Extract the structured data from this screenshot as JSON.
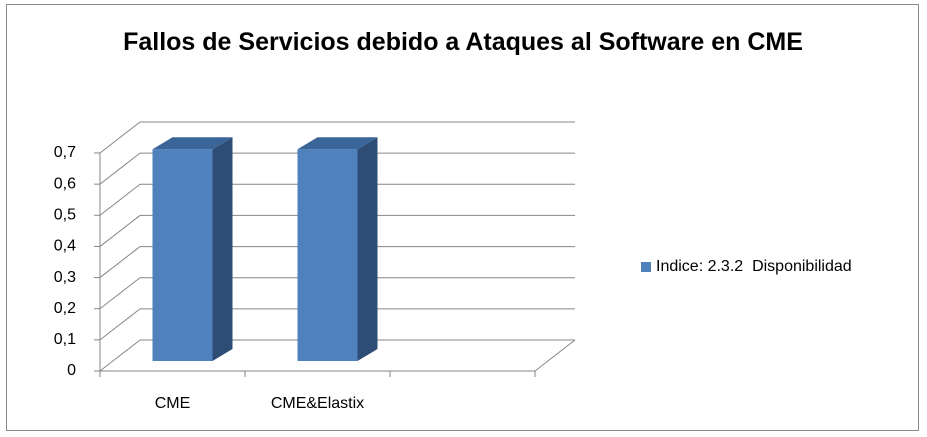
{
  "chart_data": {
    "type": "bar3d",
    "title": "Fallos de Servicios debido a Ataques al Software en CME",
    "categories": [
      "CME",
      "CME&Elastix",
      null
    ],
    "series": [
      {
        "name": "Indice: 2.3.2  Disponibilidad",
        "color": "#4f81bd",
        "values": [
          0.68,
          0.68,
          null
        ]
      }
    ],
    "ylim": [
      0,
      0.7
    ],
    "yticks": [
      0,
      {
        "value": 0.1,
        "label": "0,1"
      },
      {
        "value": 0.2,
        "label": "0,2"
      },
      {
        "value": 0.3,
        "label": "0,3"
      },
      {
        "value": 0.4,
        "label": "0,4"
      },
      {
        "value": 0.5,
        "label": "0,5"
      },
      {
        "value": 0.6,
        "label": "0,6"
      },
      {
        "value": 0.7,
        "label": "0,7"
      }
    ],
    "grid": true,
    "legend": "right"
  }
}
